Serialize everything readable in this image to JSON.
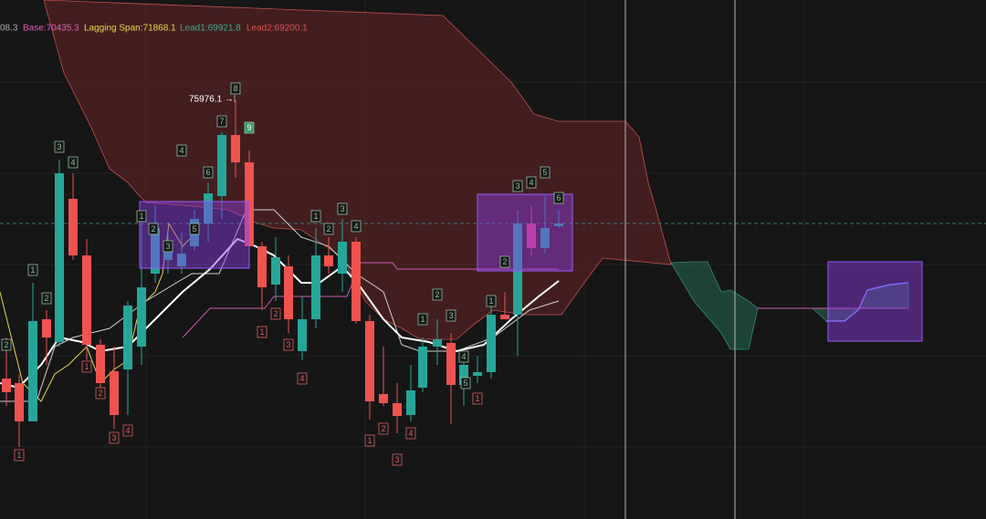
{
  "legend": {
    "close_fragment": "08.3",
    "base": "Base:70435.3",
    "lagging_span": "Lagging Span:71868.1",
    "lead1": "Lead1:69921.8",
    "lead2": "Lead2:69200.1"
  },
  "price_marker": "75976.1 →",
  "setup_counts": [
    "3",
    "4",
    "1",
    "2",
    "2",
    "1",
    "2",
    "3",
    "4",
    "5",
    "6",
    "7",
    "8",
    "9",
    "1",
    "2",
    "3",
    "4",
    "1",
    "2",
    "3",
    "4",
    "5",
    "1",
    "2",
    "3",
    "4",
    "5",
    "6"
  ],
  "countdown_counts": [
    "1",
    "1",
    "2",
    "3",
    "4",
    "1",
    "2",
    "3",
    "4",
    "1",
    "2",
    "3",
    "4",
    "1"
  ]
}
